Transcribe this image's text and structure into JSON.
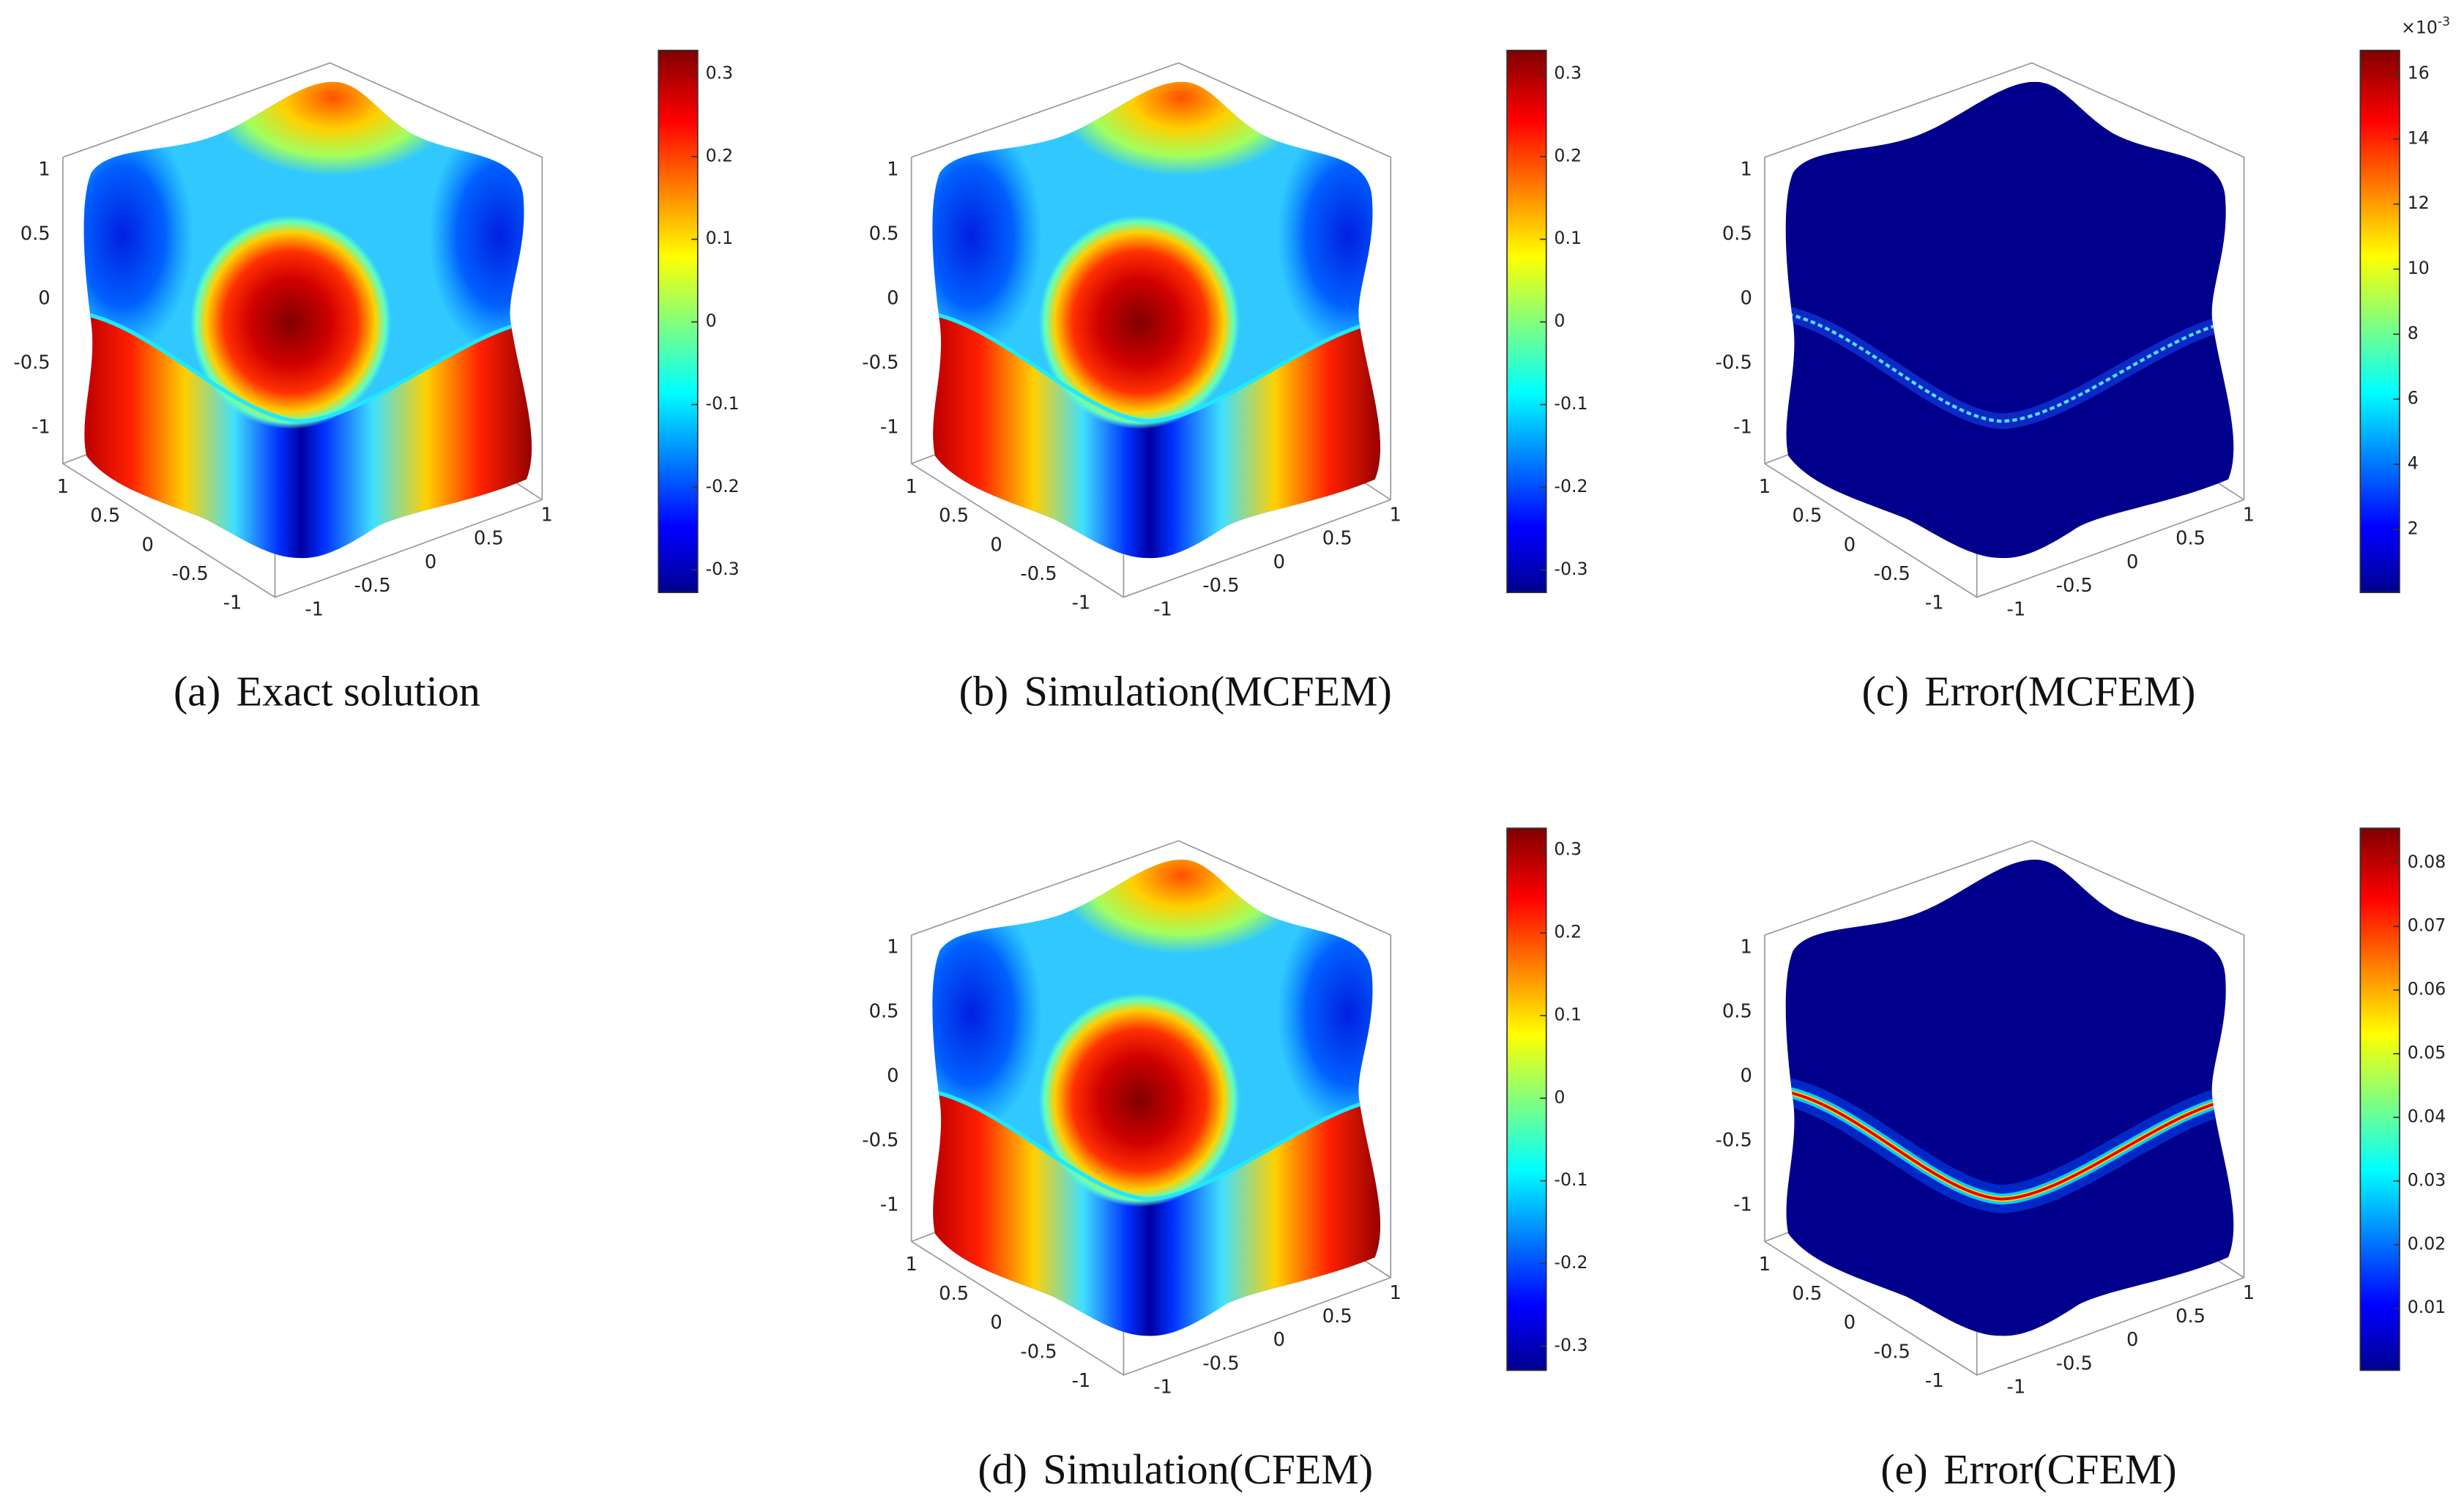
{
  "panels": [
    {
      "label": "(a)",
      "caption": "Exact solution",
      "z_ticks": [
        "1",
        "0.5",
        "0",
        "-0.5",
        "-1"
      ],
      "x_ticks": [
        "1",
        "0.5",
        "0",
        "-0.5",
        "-1"
      ],
      "y_ticks": [
        "-1",
        "-0.5",
        "0",
        "0.5",
        "1"
      ],
      "colorbar_ticks": [
        "0.3",
        "0.2",
        "0.1",
        "0",
        "-0.1",
        "-0.2",
        "-0.3"
      ]
    },
    {
      "label": "(b)",
      "caption": "Simulation(MCFEM)",
      "z_ticks": [
        "1",
        "0.5",
        "0",
        "-0.5",
        "-1"
      ],
      "x_ticks": [
        "1",
        "0.5",
        "0",
        "-0.5",
        "-1"
      ],
      "y_ticks": [
        "-1",
        "-0.5",
        "0",
        "0.5",
        "1"
      ],
      "colorbar_ticks": [
        "0.3",
        "0.2",
        "0.1",
        "0",
        "-0.1",
        "-0.2",
        "-0.3"
      ]
    },
    {
      "label": "(c)",
      "caption": "Error(MCFEM)",
      "z_ticks": [
        "1",
        "0.5",
        "0",
        "-0.5",
        "-1"
      ],
      "x_ticks": [
        "1",
        "0.5",
        "0",
        "-0.5",
        "-1"
      ],
      "y_ticks": [
        "-1",
        "-0.5",
        "0",
        "0.5",
        "1"
      ],
      "colorbar_ticks": [
        "16",
        "14",
        "12",
        "10",
        "8",
        "6",
        "4",
        "2"
      ],
      "colorbar_multiplier": {
        "base": "×10",
        "exponent": "-3"
      }
    },
    {
      "label": "(d)",
      "caption": "Simulation(CFEM)",
      "z_ticks": [
        "1",
        "0.5",
        "0",
        "-0.5",
        "-1"
      ],
      "x_ticks": [
        "1",
        "0.5",
        "0",
        "-0.5",
        "-1"
      ],
      "y_ticks": [
        "-1",
        "-0.5",
        "0",
        "0.5",
        "1"
      ],
      "colorbar_ticks": [
        "0.3",
        "0.2",
        "0.1",
        "0",
        "-0.1",
        "-0.2",
        "-0.3"
      ]
    },
    {
      "label": "(e)",
      "caption": "Error(CFEM)",
      "z_ticks": [
        "1",
        "0.5",
        "0",
        "-0.5",
        "-1"
      ],
      "x_ticks": [
        "1",
        "0.5",
        "0",
        "-0.5",
        "-1"
      ],
      "y_ticks": [
        "-1",
        "-0.5",
        "0",
        "0.5",
        "1"
      ],
      "colorbar_ticks": [
        "0.08",
        "0.07",
        "0.06",
        "0.05",
        "0.04",
        "0.03",
        "0.02",
        "0.01"
      ]
    }
  ]
}
